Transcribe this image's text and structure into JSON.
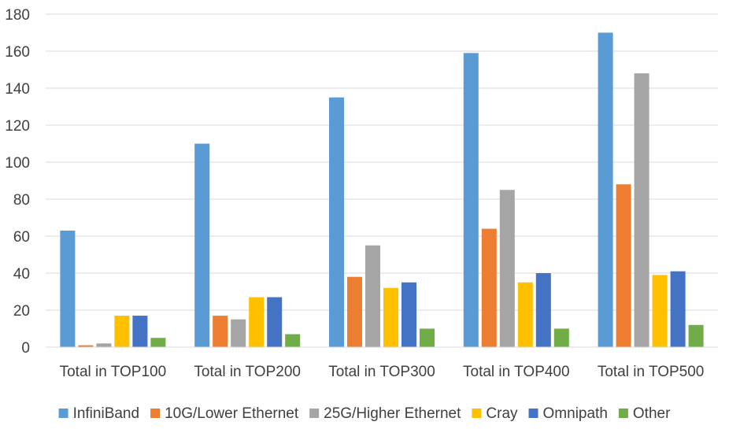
{
  "chart_data": {
    "type": "bar",
    "title": "",
    "xlabel": "",
    "ylabel": "",
    "ylim": [
      0,
      180
    ],
    "yticks": [
      0,
      20,
      40,
      60,
      80,
      100,
      120,
      140,
      160,
      180
    ],
    "grid": true,
    "legend_position": "bottom",
    "categories": [
      "Total in TOP100",
      "Total in TOP200",
      "Total in TOP300",
      "Total in TOP400",
      "Total in TOP500"
    ],
    "series": [
      {
        "name": "InfiniBand",
        "color": "#5b9bd5",
        "values": [
          63,
          110,
          135,
          159,
          170
        ]
      },
      {
        "name": "10G/Lower Ethernet",
        "color": "#ed7d31",
        "values": [
          1,
          17,
          38,
          64,
          88
        ]
      },
      {
        "name": "25G/Higher Ethernet",
        "color": "#a5a5a5",
        "values": [
          2,
          15,
          55,
          85,
          148
        ]
      },
      {
        "name": "Cray",
        "color": "#ffc000",
        "values": [
          17,
          27,
          32,
          35,
          39
        ]
      },
      {
        "name": "Omnipath",
        "color": "#4472c4",
        "values": [
          17,
          27,
          35,
          40,
          41
        ]
      },
      {
        "name": "Other",
        "color": "#70ad47",
        "values": [
          5,
          7,
          10,
          10,
          12
        ]
      }
    ]
  }
}
